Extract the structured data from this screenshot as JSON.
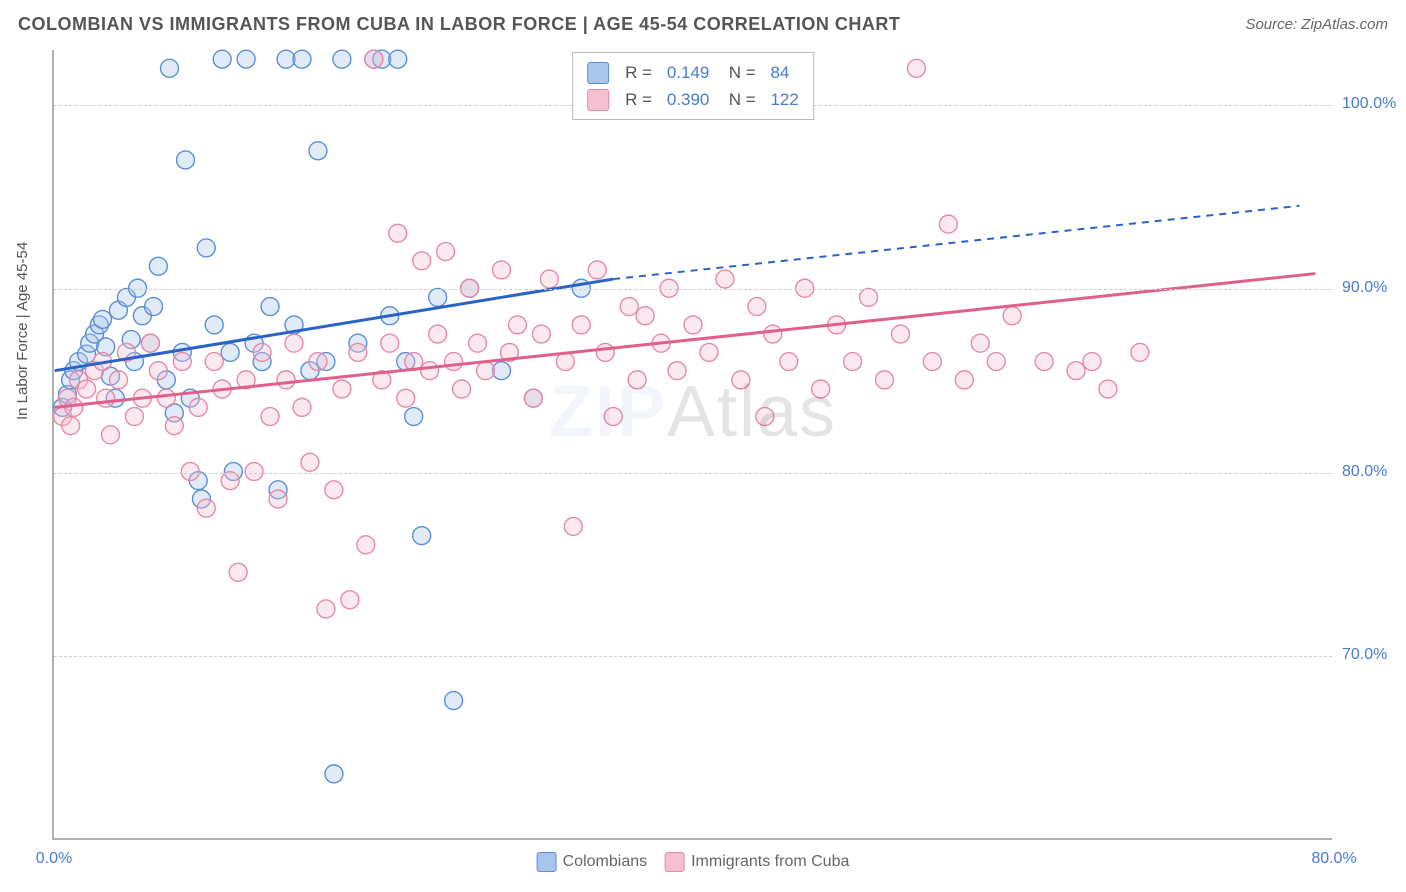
{
  "title": "COLOMBIAN VS IMMIGRANTS FROM CUBA IN LABOR FORCE | AGE 45-54 CORRELATION CHART",
  "source": "Source: ZipAtlas.com",
  "y_axis_label": "In Labor Force | Age 45-54",
  "watermark": {
    "bold": "ZIP",
    "rest": "Atlas"
  },
  "chart": {
    "type": "scatter",
    "background_color": "#ffffff",
    "grid_color": "#cfcfcf",
    "axis_color": "#b0b0b0",
    "tick_color": "#4a7bd0",
    "xlim": [
      0,
      80
    ],
    "ylim": [
      60,
      103
    ],
    "y_ticks": [
      {
        "value": 70,
        "label": "70.0%"
      },
      {
        "value": 80,
        "label": "80.0%"
      },
      {
        "value": 90,
        "label": "90.0%"
      },
      {
        "value": 100,
        "label": "100.0%"
      }
    ],
    "x_ticks": [
      {
        "value": 0,
        "label": "0.0%"
      },
      {
        "value": 80,
        "label": "80.0%"
      }
    ],
    "marker_radius": 9,
    "marker_stroke_width": 1.4,
    "marker_fill_opacity": 0.35,
    "trend_line_width": 3,
    "series": [
      {
        "id": "colombians",
        "name": "Colombians",
        "color_stroke": "#5a8fd6",
        "color_fill": "#a8c5eb",
        "line_color": "#2a63c7",
        "R": "0.149",
        "N": "84",
        "trend": {
          "x1": 0,
          "y1": 85.5,
          "x2": 35,
          "y2": 90.5,
          "dash_to_x": 78,
          "dash_to_y": 94.5
        },
        "points": [
          [
            0.5,
            83.5
          ],
          [
            0.8,
            84.2
          ],
          [
            1.0,
            85.0
          ],
          [
            1.2,
            85.5
          ],
          [
            1.5,
            86.0
          ],
          [
            2.0,
            86.4
          ],
          [
            2.2,
            87.0
          ],
          [
            2.5,
            87.5
          ],
          [
            2.8,
            88.0
          ],
          [
            3.0,
            88.3
          ],
          [
            3.2,
            86.8
          ],
          [
            3.5,
            85.2
          ],
          [
            3.8,
            84.0
          ],
          [
            4.0,
            88.8
          ],
          [
            4.5,
            89.5
          ],
          [
            4.8,
            87.2
          ],
          [
            5.0,
            86.0
          ],
          [
            5.2,
            90.0
          ],
          [
            5.5,
            88.5
          ],
          [
            6.0,
            87.0
          ],
          [
            6.2,
            89.0
          ],
          [
            6.5,
            91.2
          ],
          [
            7.0,
            85.0
          ],
          [
            7.2,
            102.0
          ],
          [
            7.5,
            83.2
          ],
          [
            8.0,
            86.5
          ],
          [
            8.2,
            97.0
          ],
          [
            8.5,
            84.0
          ],
          [
            9.0,
            79.5
          ],
          [
            9.2,
            78.5
          ],
          [
            9.5,
            92.2
          ],
          [
            10.0,
            88.0
          ],
          [
            10.5,
            102.5
          ],
          [
            11.0,
            86.5
          ],
          [
            11.2,
            80.0
          ],
          [
            12.0,
            102.5
          ],
          [
            12.5,
            87.0
          ],
          [
            13.0,
            86.0
          ],
          [
            13.5,
            89.0
          ],
          [
            14.0,
            79.0
          ],
          [
            14.5,
            102.5
          ],
          [
            15.0,
            88.0
          ],
          [
            15.5,
            102.5
          ],
          [
            16.0,
            85.5
          ],
          [
            16.5,
            97.5
          ],
          [
            17.0,
            86.0
          ],
          [
            17.5,
            63.5
          ],
          [
            18.0,
            102.5
          ],
          [
            19.0,
            87.0
          ],
          [
            20.0,
            102.5
          ],
          [
            20.5,
            102.5
          ],
          [
            21.0,
            88.5
          ],
          [
            21.5,
            102.5
          ],
          [
            22.0,
            86.0
          ],
          [
            22.5,
            83.0
          ],
          [
            23.0,
            76.5
          ],
          [
            24.0,
            89.5
          ],
          [
            25.0,
            67.5
          ],
          [
            26.0,
            90.0
          ],
          [
            28.0,
            85.5
          ],
          [
            30.0,
            84.0
          ],
          [
            33.0,
            90.0
          ]
        ]
      },
      {
        "id": "cuba",
        "name": "Immigrants from Cuba",
        "color_stroke": "#e48aa8",
        "color_fill": "#f5c1d2",
        "line_color": "#e05f8b",
        "R": "0.390",
        "N": "122",
        "trend": {
          "x1": 0,
          "y1": 83.5,
          "x2": 79,
          "y2": 90.8
        },
        "points": [
          [
            0.5,
            83.0
          ],
          [
            0.8,
            84.0
          ],
          [
            1.0,
            82.5
          ],
          [
            1.2,
            83.5
          ],
          [
            1.5,
            85.0
          ],
          [
            2.0,
            84.5
          ],
          [
            2.5,
            85.5
          ],
          [
            3.0,
            86.0
          ],
          [
            3.2,
            84.0
          ],
          [
            3.5,
            82.0
          ],
          [
            4.0,
            85.0
          ],
          [
            4.5,
            86.5
          ],
          [
            5.0,
            83.0
          ],
          [
            5.5,
            84.0
          ],
          [
            6.0,
            87.0
          ],
          [
            6.5,
            85.5
          ],
          [
            7.0,
            84.0
          ],
          [
            7.5,
            82.5
          ],
          [
            8.0,
            86.0
          ],
          [
            8.5,
            80.0
          ],
          [
            9.0,
            83.5
          ],
          [
            9.5,
            78.0
          ],
          [
            10.0,
            86.0
          ],
          [
            10.5,
            84.5
          ],
          [
            11.0,
            79.5
          ],
          [
            11.5,
            74.5
          ],
          [
            12.0,
            85.0
          ],
          [
            12.5,
            80.0
          ],
          [
            13.0,
            86.5
          ],
          [
            13.5,
            83.0
          ],
          [
            14.0,
            78.5
          ],
          [
            14.5,
            85.0
          ],
          [
            15.0,
            87.0
          ],
          [
            15.5,
            83.5
          ],
          [
            16.0,
            80.5
          ],
          [
            16.5,
            86.0
          ],
          [
            17.0,
            72.5
          ],
          [
            17.5,
            79.0
          ],
          [
            18.0,
            84.5
          ],
          [
            18.5,
            73.0
          ],
          [
            19.0,
            86.5
          ],
          [
            19.5,
            76.0
          ],
          [
            20.0,
            102.5
          ],
          [
            20.5,
            85.0
          ],
          [
            21.0,
            87.0
          ],
          [
            21.5,
            93.0
          ],
          [
            22.0,
            84.0
          ],
          [
            22.5,
            86.0
          ],
          [
            23.0,
            91.5
          ],
          [
            23.5,
            85.5
          ],
          [
            24.0,
            87.5
          ],
          [
            24.5,
            92.0
          ],
          [
            25.0,
            86.0
          ],
          [
            25.5,
            84.5
          ],
          [
            26.0,
            90.0
          ],
          [
            26.5,
            87.0
          ],
          [
            27.0,
            85.5
          ],
          [
            28.0,
            91.0
          ],
          [
            28.5,
            86.5
          ],
          [
            29.0,
            88.0
          ],
          [
            30.0,
            84.0
          ],
          [
            30.5,
            87.5
          ],
          [
            31.0,
            90.5
          ],
          [
            32.0,
            86.0
          ],
          [
            32.5,
            77.0
          ],
          [
            33.0,
            88.0
          ],
          [
            34.0,
            91.0
          ],
          [
            34.5,
            86.5
          ],
          [
            35.0,
            83.0
          ],
          [
            36.0,
            89.0
          ],
          [
            36.5,
            85.0
          ],
          [
            37.0,
            88.5
          ],
          [
            38.0,
            87.0
          ],
          [
            38.5,
            90.0
          ],
          [
            39.0,
            85.5
          ],
          [
            40.0,
            88.0
          ],
          [
            41.0,
            86.5
          ],
          [
            42.0,
            90.5
          ],
          [
            43.0,
            85.0
          ],
          [
            44.0,
            89.0
          ],
          [
            44.5,
            83.0
          ],
          [
            45.0,
            87.5
          ],
          [
            46.0,
            86.0
          ],
          [
            47.0,
            90.0
          ],
          [
            48.0,
            84.5
          ],
          [
            49.0,
            88.0
          ],
          [
            50.0,
            86.0
          ],
          [
            51.0,
            89.5
          ],
          [
            52.0,
            85.0
          ],
          [
            53.0,
            87.5
          ],
          [
            54.0,
            102.0
          ],
          [
            55.0,
            86.0
          ],
          [
            56.0,
            93.5
          ],
          [
            57.0,
            85.0
          ],
          [
            58.0,
            87.0
          ],
          [
            59.0,
            86.0
          ],
          [
            60.0,
            88.5
          ],
          [
            62.0,
            86.0
          ],
          [
            64.0,
            85.5
          ],
          [
            65.0,
            86.0
          ],
          [
            66.0,
            84.5
          ],
          [
            68.0,
            86.5
          ]
        ]
      }
    ],
    "bottom_legend": [
      {
        "swatch_fill": "#a8c5eb",
        "swatch_stroke": "#5a8fd6",
        "label": "Colombians"
      },
      {
        "swatch_fill": "#f5c1d2",
        "swatch_stroke": "#e48aa8",
        "label": "Immigrants from Cuba"
      }
    ]
  }
}
